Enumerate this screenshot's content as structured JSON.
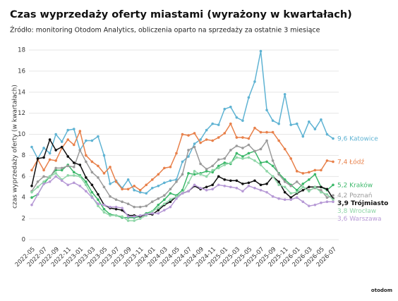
{
  "chart_data": {
    "type": "line",
    "title": "Czas wyprzedaży oferty miastami (wyrażony w kwartałach)",
    "subtitle": "Źródło: monitoring Otodom Analytics, obliczenia oparto na sprzedaży za ostatnie 3 miesiące",
    "y_label": "czas wyprzedaży oferty (w kwartałach)",
    "logo": "otodom",
    "categories": [
      "2022-05",
      null,
      "2022-07",
      null,
      "2022-09",
      null,
      "2022-11",
      null,
      "2023-01",
      null,
      "2023-03",
      null,
      "2023-05",
      null,
      "2023-07",
      null,
      "2023-09",
      null,
      "2023-11",
      null,
      "2024-01",
      null,
      "2024-03",
      null,
      "2024-05",
      null,
      "2024-07",
      null,
      "2024-09",
      null,
      "2024-11",
      null,
      "2025-01",
      null,
      "2025-03",
      null,
      "2025-05",
      null,
      "2025-07",
      null,
      "2025-09",
      null,
      "2025-11",
      null,
      "2026-01",
      null,
      "2026-03",
      null,
      "2026-05",
      null,
      "2026-07"
    ],
    "ylim": [
      0,
      18
    ],
    "yticks": [
      0,
      2,
      4,
      6,
      8,
      10,
      12,
      14,
      16,
      18
    ],
    "grid": true,
    "series": [
      {
        "name": "Katowice",
        "end_label": "9,6",
        "color": "#5fb3d3",
        "values": [
          8.8,
          7.7,
          8.7,
          8.2,
          10.0,
          9.3,
          10.4,
          10.5,
          8.5,
          9.4,
          9.4,
          9.8,
          8.0,
          5.3,
          5.6,
          4.9,
          5.7,
          4.7,
          4.5,
          4.4,
          4.9,
          5.1,
          5.4,
          5.6,
          5.7,
          7.4,
          7.9,
          9.1,
          9.5,
          10.4,
          11.0,
          10.9,
          12.4,
          12.6,
          11.6,
          11.3,
          13.5,
          15.0,
          17.9,
          12.3,
          11.3,
          11.0,
          13.8,
          10.9,
          11.0,
          9.8,
          11.2,
          10.5,
          11.4,
          10.0,
          9.6
        ]
      },
      {
        "name": "Łódź",
        "end_label": "7,4",
        "color": "#e8804a",
        "values": [
          6.6,
          7.6,
          6.6,
          7.6,
          7.5,
          8.7,
          9.5,
          9.0,
          10.3,
          8.0,
          7.4,
          7.0,
          6.3,
          6.9,
          5.5,
          4.8,
          4.8,
          5.1,
          4.7,
          5.2,
          5.7,
          6.2,
          6.8,
          6.9,
          8.2,
          10.0,
          9.9,
          10.1,
          9.2,
          9.5,
          9.4,
          9.7,
          10.1,
          11.0,
          9.7,
          9.7,
          9.6,
          10.6,
          10.2,
          10.2,
          10.2,
          9.4,
          8.6,
          7.7,
          6.5,
          6.3,
          6.4,
          6.6,
          6.6,
          7.5,
          7.4
        ]
      },
      {
        "name": "Kraków",
        "end_label": "5,2",
        "color": "#3cb86a",
        "values": [
          4.0,
          4.3,
          5.3,
          6.0,
          6.6,
          6.6,
          7.1,
          6.4,
          6.1,
          5.5,
          4.5,
          3.8,
          2.9,
          2.4,
          2.3,
          2.1,
          2.1,
          2.1,
          2.2,
          2.5,
          2.7,
          3.3,
          3.8,
          4.4,
          4.2,
          4.7,
          6.3,
          6.2,
          6.3,
          6.5,
          6.4,
          7.0,
          7.3,
          7.2,
          8.2,
          7.9,
          8.2,
          8.4,
          7.3,
          7.4,
          7.0,
          6.3,
          5.7,
          5.2,
          4.7,
          5.3,
          5.7,
          6.2,
          5.0,
          4.7,
          5.2
        ]
      },
      {
        "name": "Poznań",
        "end_label": "4,2",
        "color": "#9a9a9a",
        "values": [
          4.6,
          5.5,
          6.0,
          5.9,
          6.8,
          6.8,
          7.0,
          6.9,
          8.5,
          7.4,
          6.4,
          5.9,
          5.0,
          4.1,
          3.8,
          3.6,
          3.4,
          3.1,
          3.1,
          3.2,
          3.6,
          3.9,
          4.2,
          4.8,
          5.5,
          6.2,
          8.5,
          8.8,
          7.2,
          6.7,
          7.0,
          7.6,
          7.7,
          8.5,
          8.9,
          8.7,
          9.0,
          8.4,
          8.6,
          9.4,
          7.5,
          6.2,
          5.5,
          5.1,
          5.5,
          5.0,
          4.7,
          4.9,
          4.7,
          4.0,
          4.2
        ]
      },
      {
        "name": "Trójmiasto",
        "end_label": "3,9",
        "color": "#111111",
        "values": [
          5.1,
          7.7,
          7.8,
          9.5,
          8.5,
          8.8,
          7.9,
          7.3,
          7.1,
          5.9,
          5.2,
          4.3,
          3.3,
          3.0,
          2.9,
          2.8,
          2.3,
          2.3,
          2.2,
          2.4,
          2.4,
          2.8,
          3.3,
          3.6,
          4.1,
          4.4,
          4.6,
          5.1,
          4.8,
          5.0,
          5.2,
          6.0,
          5.7,
          5.6,
          5.6,
          5.3,
          5.4,
          5.6,
          5.2,
          5.3,
          6.0,
          5.5,
          4.5,
          4.0,
          4.4,
          4.7,
          5.0,
          5.0,
          5.0,
          4.8,
          3.9
        ]
      },
      {
        "name": "Wrocław",
        "end_label": "3,8",
        "color": "#8fd6a8",
        "values": [
          4.5,
          5.0,
          5.5,
          6.0,
          6.3,
          5.7,
          6.1,
          6.1,
          6.0,
          5.2,
          4.1,
          3.2,
          2.6,
          2.3,
          2.3,
          2.2,
          1.8,
          1.8,
          2.0,
          2.3,
          2.7,
          3.0,
          3.4,
          3.8,
          4.1,
          4.4,
          5.4,
          6.5,
          6.2,
          6.0,
          6.6,
          6.8,
          7.1,
          7.3,
          7.8,
          7.7,
          7.8,
          7.5,
          7.1,
          6.5,
          6.0,
          5.2,
          5.0,
          4.4,
          4.5,
          5.0,
          4.6,
          5.0,
          4.5,
          4.3,
          3.8
        ]
      },
      {
        "name": "Warszawa",
        "end_label": "3,6",
        "color": "#b79ad6",
        "values": [
          3.3,
          4.3,
          5.3,
          5.5,
          6.0,
          5.6,
          5.2,
          5.4,
          5.1,
          4.6,
          4.0,
          3.4,
          3.3,
          3.1,
          3.1,
          3.0,
          2.2,
          2.2,
          2.3,
          2.4,
          2.5,
          2.5,
          2.8,
          3.1,
          3.9,
          4.4,
          4.6,
          5.2,
          4.9,
          4.7,
          4.8,
          5.2,
          5.1,
          5.0,
          4.9,
          4.6,
          5.1,
          4.9,
          4.7,
          4.5,
          4.1,
          3.9,
          3.8,
          3.8,
          4.0,
          3.6,
          3.2,
          3.3,
          3.5,
          3.6,
          3.6
        ]
      }
    ]
  }
}
